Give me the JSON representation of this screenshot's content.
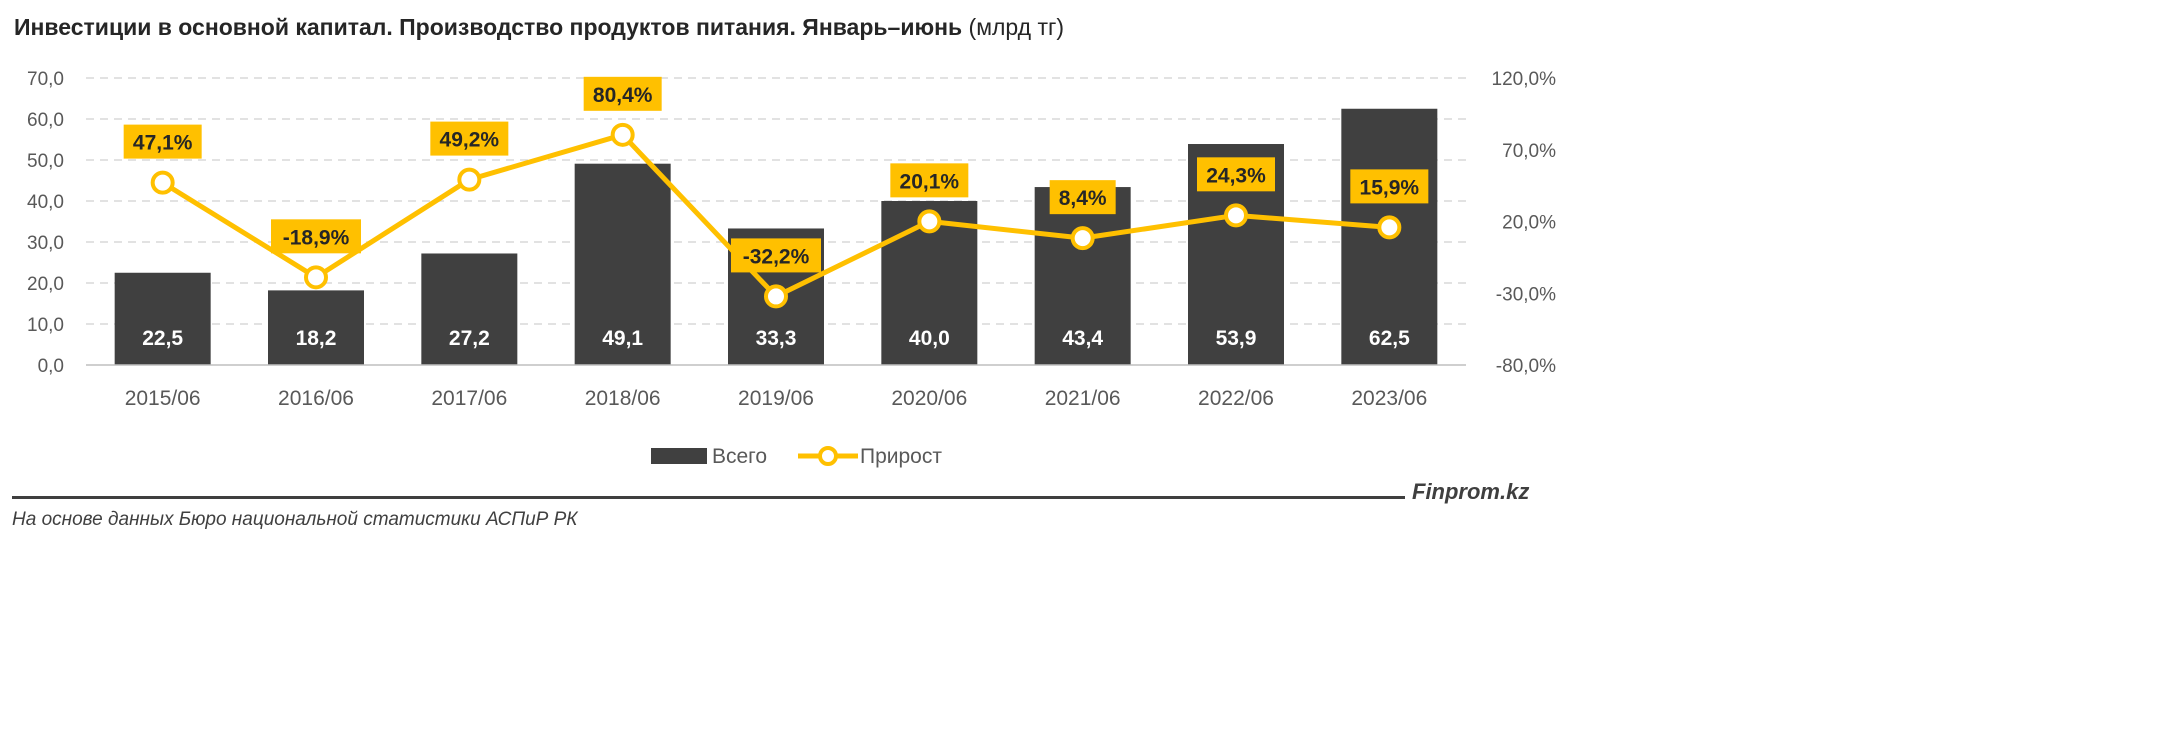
{
  "title": {
    "main": "Инвестиции в основной капитал. Производство продуктов питания. Январь–июнь",
    "unit": "(млрд тг)"
  },
  "colors": {
    "bar": "#404040",
    "line": "#ffc000",
    "label_fill": "#ffc000",
    "grid": "#d9d9d9",
    "axis_text": "#595959"
  },
  "chart_data": {
    "type": "bar",
    "categories": [
      "2015/06",
      "2016/06",
      "2017/06",
      "2018/06",
      "2019/06",
      "2020/06",
      "2021/06",
      "2022/06",
      "2023/06"
    ],
    "series": [
      {
        "name": "Всего",
        "type": "bar",
        "axis": "left",
        "values": [
          22.5,
          18.2,
          27.2,
          49.1,
          33.3,
          40.0,
          43.4,
          53.9,
          62.5
        ],
        "labels": [
          "22,5",
          "18,2",
          "27,2",
          "49,1",
          "33,3",
          "40,0",
          "43,4",
          "53,9",
          "62,5"
        ]
      },
      {
        "name": "Прирост",
        "type": "line",
        "axis": "right",
        "values": [
          47.1,
          -18.9,
          49.2,
          80.4,
          -32.2,
          20.1,
          8.4,
          24.3,
          15.9
        ],
        "labels": [
          "47,1%",
          "-18,9%",
          "49,2%",
          "80,4%",
          "-32,2%",
          "20,1%",
          "8,4%",
          "24,3%",
          "15,9%"
        ]
      }
    ],
    "y_left": {
      "lim": [
        0,
        70
      ],
      "ticks": [
        "0,0",
        "10,0",
        "20,0",
        "30,0",
        "40,0",
        "50,0",
        "60,0",
        "70,0"
      ]
    },
    "y_right": {
      "lim": [
        -80,
        120
      ],
      "ticks": [
        "-80,0%",
        "-30,0%",
        "20,0%",
        "70,0%",
        "120,0%"
      ]
    },
    "grid": true,
    "legend_position": "bottom"
  },
  "footer": {
    "brand": "Finprom.kz",
    "source": "На основе данных Бюро национальной статистики АСПиР РК"
  }
}
